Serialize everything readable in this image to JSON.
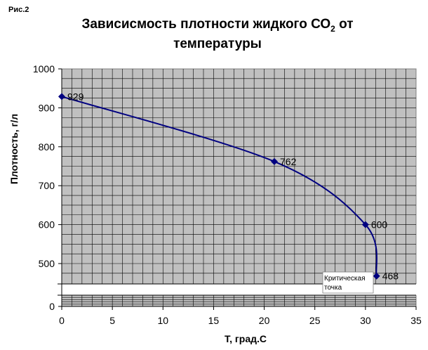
{
  "figure_label": "Рис.2",
  "chart_data": {
    "type": "line",
    "title_line1_pre": "Зависисмость  плотности жидкого СО",
    "title_sub": "2",
    "title_line1_post": " от",
    "title_line2": "температуры",
    "xlabel": "Т, град.С",
    "ylabel": "Плотность, г/л",
    "xlim": [
      0,
      35
    ],
    "ylim": [
      0,
      1000
    ],
    "y_axis_break": [
      50,
      450
    ],
    "x_ticks": [
      "0",
      "5",
      "10",
      "15",
      "20",
      "25",
      "30",
      "35"
    ],
    "y_ticks": [
      "0",
      "500",
      "600",
      "700",
      "800",
      "900",
      "1000"
    ],
    "series": [
      {
        "color": "#000080",
        "points": [
          {
            "x": 0,
            "y": 929,
            "label": "929"
          },
          {
            "x": 21,
            "y": 762,
            "label": "762"
          },
          {
            "x": 30,
            "y": 600,
            "label": "600"
          },
          {
            "x": 31.1,
            "y": 468,
            "label": "468"
          }
        ]
      }
    ],
    "annotation": [
      "Критическая",
      "точка"
    ],
    "plot_bg": "#c0c0c0",
    "grid": true
  }
}
